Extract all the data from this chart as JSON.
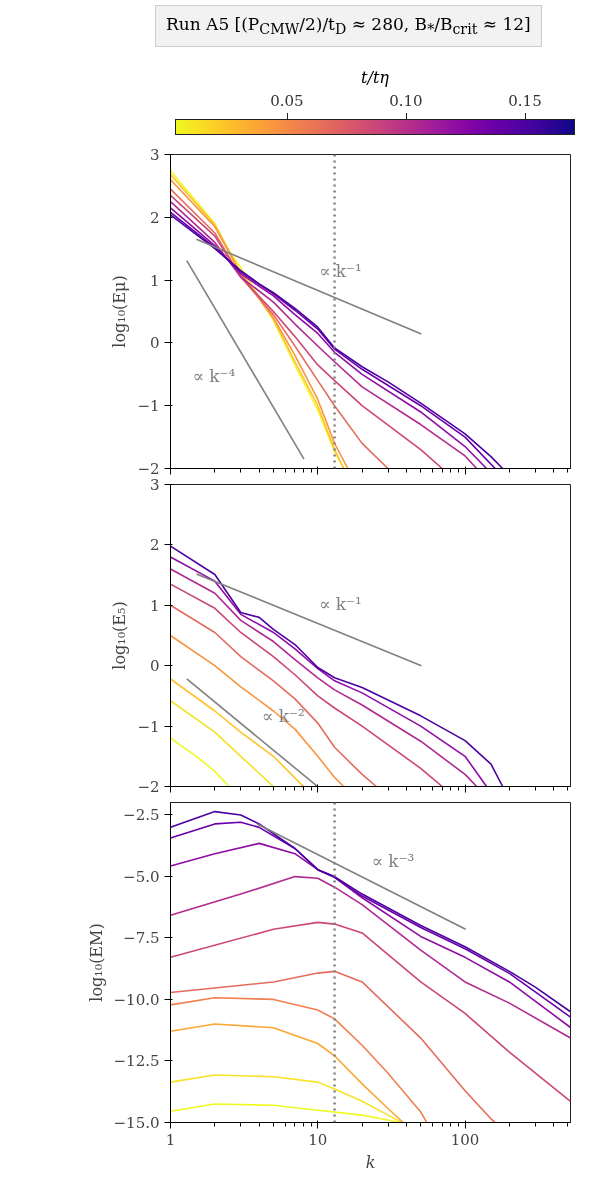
{
  "chart_data": [
    {
      "type": "line",
      "title": "Run A5  [(P$_{CMW}$/2)/t$_{D}$ ≈ 280,  B$_{*}$/B$_{crit}$ ≈ 12]",
      "clabel": "t/tη",
      "clim": [
        0.003,
        0.171
      ],
      "cticks": [
        {
          "value": 0.05,
          "label": "0.05"
        },
        {
          "value": 0.1,
          "label": "0.10"
        },
        {
          "value": 0.15,
          "label": "0.15"
        }
      ],
      "ylabel": "log₁₀(Eμ)",
      "log": "x",
      "xlim": [
        1,
        520
      ],
      "ylim": [
        -2,
        3
      ],
      "xticks": [
        1,
        10,
        100
      ],
      "yticks": [
        3,
        2,
        1,
        0,
        {
          "value": -1,
          "label": "−1"
        },
        {
          "value": -2,
          "label": "−2"
        }
      ],
      "tick_labels": "y",
      "grid": false,
      "ref_lines": [
        {
          "axis": "x",
          "value": 13,
          "color": "#808080",
          "line_style": "dotted"
        }
      ],
      "series": [
        {
          "color": "#f0f921",
          "x": [
            1,
            2,
            2.5,
            3,
            5,
            7,
            10,
            13,
            15
          ],
          "values": [
            2.74,
            1.9,
            1.46,
            1.2,
            0.36,
            -0.35,
            -1.07,
            -1.73,
            -2.0
          ]
        },
        {
          "color": "#fdc328",
          "x": [
            1,
            2,
            3,
            5,
            7,
            10,
            13,
            15
          ],
          "values": [
            2.68,
            1.88,
            1.12,
            0.38,
            -0.3,
            -1.0,
            -1.7,
            -2.0
          ]
        },
        {
          "color": "#f89540",
          "x": [
            1,
            2,
            3,
            5,
            7,
            10,
            13,
            16
          ],
          "values": [
            2.6,
            1.85,
            1.1,
            0.4,
            -0.2,
            -0.9,
            -1.6,
            -2.0
          ]
        },
        {
          "color": "#e56b5d",
          "x": [
            1,
            2,
            3,
            5,
            7,
            10,
            13,
            20,
            30
          ],
          "values": [
            2.45,
            1.75,
            1.05,
            0.45,
            -0.05,
            -0.6,
            -1.0,
            -1.6,
            -2.0
          ]
        },
        {
          "color": "#cc4778",
          "x": [
            1,
            2,
            3,
            5,
            7,
            10,
            13,
            20,
            50,
            70
          ],
          "values": [
            2.35,
            1.7,
            1.05,
            0.5,
            0.1,
            -0.35,
            -0.6,
            -1.0,
            -1.7,
            -2.0
          ]
        },
        {
          "color": "#b12a90",
          "x": [
            1,
            2,
            3,
            5,
            7,
            10,
            13,
            20,
            50,
            100,
            120
          ],
          "values": [
            2.25,
            1.6,
            1.05,
            0.65,
            0.3,
            -0.05,
            -0.3,
            -0.7,
            -1.3,
            -1.8,
            -2.0
          ]
        },
        {
          "color": "#8f0da4",
          "x": [
            1,
            2,
            3,
            5,
            7,
            10,
            13,
            20,
            50,
            100,
            140
          ],
          "values": [
            2.15,
            1.55,
            1.1,
            0.75,
            0.45,
            0.15,
            -0.15,
            -0.5,
            -1.1,
            -1.65,
            -2.0
          ]
        },
        {
          "color": "#6a00a8",
          "x": [
            1,
            2,
            3,
            5,
            7,
            10,
            13,
            20,
            50,
            100,
            160
          ],
          "values": [
            2.08,
            1.52,
            1.13,
            0.78,
            0.52,
            0.22,
            -0.1,
            -0.42,
            -1.0,
            -1.5,
            -2.0
          ]
        },
        {
          "color": "#4c02a1",
          "x": [
            1,
            2,
            3,
            4,
            5,
            7,
            10,
            13,
            20,
            30,
            50,
            100,
            150,
            180
          ],
          "values": [
            2.04,
            1.5,
            1.15,
            0.94,
            0.8,
            0.55,
            0.25,
            -0.08,
            -0.38,
            -0.62,
            -0.96,
            -1.45,
            -1.81,
            -2.0
          ]
        },
        {
          "name": "∝ k⁻¹",
          "color": "#808080",
          "x": [
            1.5,
            50.5
          ],
          "values": [
            1.65,
            0.14
          ]
        },
        {
          "name": "∝ k⁻⁴",
          "color": "#808080",
          "x": [
            1.29,
            8.06
          ],
          "values": [
            1.31,
            -1.85
          ]
        }
      ]
    },
    {
      "type": "line",
      "ylabel": "log₁₀(E₅)",
      "log": "x",
      "xlim": [
        1,
        520
      ],
      "ylim": [
        -2,
        3
      ],
      "xticks": [
        1,
        10,
        100
      ],
      "yticks": [
        3,
        2,
        1,
        0,
        {
          "value": -1,
          "label": "−1"
        },
        {
          "value": -2,
          "label": "−2"
        }
      ],
      "tick_labels": "y",
      "grid": false,
      "series": [
        {
          "color": "#f0f921",
          "x": [
            1,
            1.5,
            2,
            2.5
          ],
          "values": [
            -1.2,
            -1.5,
            -1.75,
            -2.0
          ]
        },
        {
          "color": "#f7e225",
          "x": [
            1,
            2,
            3,
            5
          ],
          "values": [
            -0.58,
            -1.1,
            -1.5,
            -2.0
          ]
        },
        {
          "color": "#fdc328",
          "x": [
            1,
            2,
            3,
            5,
            8
          ],
          "values": [
            -0.22,
            -0.75,
            -1.1,
            -1.5,
            -2.0
          ]
        },
        {
          "color": "#f89540",
          "x": [
            1,
            2,
            3,
            5,
            7,
            10,
            13,
            15
          ],
          "values": [
            0.5,
            0.0,
            -0.35,
            -0.75,
            -1.05,
            -1.5,
            -1.85,
            -2.0
          ]
        },
        {
          "color": "#e56b5d",
          "x": [
            1,
            2,
            3,
            5,
            7,
            10,
            13,
            20,
            25
          ],
          "values": [
            1.0,
            0.55,
            0.15,
            -0.25,
            -0.55,
            -0.95,
            -1.35,
            -1.8,
            -2.0
          ]
        },
        {
          "color": "#cc4778",
          "x": [
            1,
            2,
            3,
            5,
            7,
            10,
            13,
            20,
            50,
            70
          ],
          "values": [
            1.35,
            0.95,
            0.55,
            0.15,
            -0.15,
            -0.5,
            -0.7,
            -1.0,
            -1.7,
            -2.0
          ]
        },
        {
          "color": "#b12a90",
          "x": [
            1,
            2,
            3,
            5,
            7,
            10,
            13,
            20,
            50,
            100,
            120
          ],
          "values": [
            1.6,
            1.2,
            0.75,
            0.4,
            0.1,
            -0.2,
            -0.4,
            -0.65,
            -1.25,
            -1.8,
            -2.0
          ]
        },
        {
          "color": "#8f0da4",
          "x": [
            1,
            2,
            3,
            5,
            7,
            10,
            13,
            20,
            50,
            100,
            140
          ],
          "values": [
            1.8,
            1.4,
            0.85,
            0.55,
            0.28,
            -0.05,
            -0.25,
            -0.45,
            -1.0,
            -1.5,
            -2.0
          ]
        },
        {
          "color": "#4c02a1",
          "x": [
            1,
            2,
            3,
            4,
            5,
            7,
            10,
            13,
            20,
            50,
            100,
            150,
            180
          ],
          "values": [
            1.98,
            1.51,
            0.88,
            0.8,
            0.6,
            0.35,
            -0.03,
            -0.2,
            -0.36,
            -0.83,
            -1.24,
            -1.63,
            -2.0
          ]
        },
        {
          "name": "∝ k⁻¹",
          "color": "#808080",
          "x": [
            1.5,
            50.5
          ],
          "values": [
            1.52,
            0.0
          ]
        },
        {
          "name": "∝ k⁻²",
          "color": "#808080",
          "x": [
            1.29,
            9.85
          ],
          "values": [
            -0.22,
            -1.99
          ]
        }
      ]
    },
    {
      "type": "line",
      "xlabel": "k",
      "ylabel": "log₁₀(EM)",
      "log": "x",
      "xlim": [
        1,
        520
      ],
      "ylim": [
        -15,
        -2.0
      ],
      "xticks": [
        1,
        10,
        100
      ],
      "yticks": [
        {
          "value": -2.5,
          "label": "−2.5"
        },
        {
          "value": -5,
          "label": "−5.0"
        },
        {
          "value": -7.5,
          "label": "−7.5"
        },
        {
          "value": -10,
          "label": "−10.0"
        },
        {
          "value": -12.5,
          "label": "−12.5"
        },
        {
          "value": -15,
          "label": "−15.0"
        }
      ],
      "grid": false,
      "ref_lines": [
        {
          "axis": "x",
          "value": 13,
          "color": "#808080",
          "line_style": "dotted"
        }
      ],
      "series": [
        {
          "color": "#f0f921",
          "x": [
            1,
            2,
            5,
            10,
            20,
            30,
            35
          ],
          "values": [
            -14.54,
            -14.25,
            -14.3,
            -14.5,
            -14.7,
            -14.9,
            -15.0
          ]
        },
        {
          "color": "#f7e225",
          "x": [
            1,
            2,
            5,
            10,
            13,
            20,
            30,
            37
          ],
          "values": [
            -13.36,
            -13.07,
            -13.14,
            -13.36,
            -13.64,
            -14.14,
            -14.7,
            -15.0
          ]
        },
        {
          "color": "#fca636",
          "x": [
            1,
            2,
            5,
            10,
            13,
            20,
            30,
            38
          ],
          "values": [
            -11.29,
            -11.0,
            -11.15,
            -11.79,
            -12.29,
            -13.43,
            -14.43,
            -15.0
          ]
        },
        {
          "color": "#f0804e",
          "x": [
            1,
            2,
            5,
            10,
            13,
            20,
            30,
            50,
            55
          ],
          "values": [
            -10.22,
            -9.93,
            -10.0,
            -10.43,
            -10.79,
            -11.86,
            -13.0,
            -14.57,
            -15.0
          ]
        },
        {
          "color": "#e56b5d",
          "x": [
            1,
            5,
            10,
            13,
            20,
            50,
            100,
            150,
            160
          ],
          "values": [
            -9.72,
            -9.29,
            -8.93,
            -8.86,
            -9.29,
            -11.57,
            -13.71,
            -14.85,
            -15.0
          ]
        },
        {
          "color": "#cc4778",
          "x": [
            1,
            5,
            10,
            13,
            20,
            50,
            100,
            200,
            520
          ],
          "values": [
            -8.29,
            -7.15,
            -6.87,
            -6.94,
            -7.3,
            -9.29,
            -10.57,
            -12.14,
            -14.14
          ]
        },
        {
          "color": "#b12a90",
          "x": [
            1,
            3,
            7,
            10,
            13,
            20,
            50,
            100,
            200,
            520
          ],
          "values": [
            -6.58,
            -5.72,
            -5.01,
            -5.08,
            -5.44,
            -6.15,
            -8.0,
            -9.29,
            -10.15,
            -11.57
          ]
        },
        {
          "color": "#8f0da4",
          "x": [
            1,
            2,
            4,
            7,
            10,
            13,
            20,
            50,
            100,
            200,
            520
          ],
          "values": [
            -4.58,
            -4.08,
            -3.66,
            -4.08,
            -4.73,
            -5.04,
            -5.87,
            -7.44,
            -8.29,
            -9.29,
            -11.14
          ]
        },
        {
          "color": "#6a00a8",
          "x": [
            1,
            2,
            3,
            4,
            7,
            10,
            13,
            20,
            50,
            100,
            200,
            520
          ],
          "values": [
            -3.44,
            -2.87,
            -2.8,
            -3.01,
            -3.87,
            -4.73,
            -5.04,
            -5.8,
            -7.08,
            -7.94,
            -8.94,
            -10.72
          ]
        },
        {
          "color": "#4c02a1",
          "x": [
            1,
            2,
            3,
            4,
            7,
            10,
            13,
            20,
            50,
            100,
            200,
            300,
            520
          ],
          "values": [
            -3.01,
            -2.37,
            -2.51,
            -2.87,
            -3.87,
            -4.73,
            -5.01,
            -5.72,
            -7.0,
            -7.86,
            -8.86,
            -9.5,
            -10.5
          ]
        },
        {
          "name": "∝ k⁻³",
          "color": "#808080",
          "x": [
            3.88,
            100.9
          ],
          "values": [
            -2.87,
            -7.15
          ]
        }
      ]
    }
  ]
}
